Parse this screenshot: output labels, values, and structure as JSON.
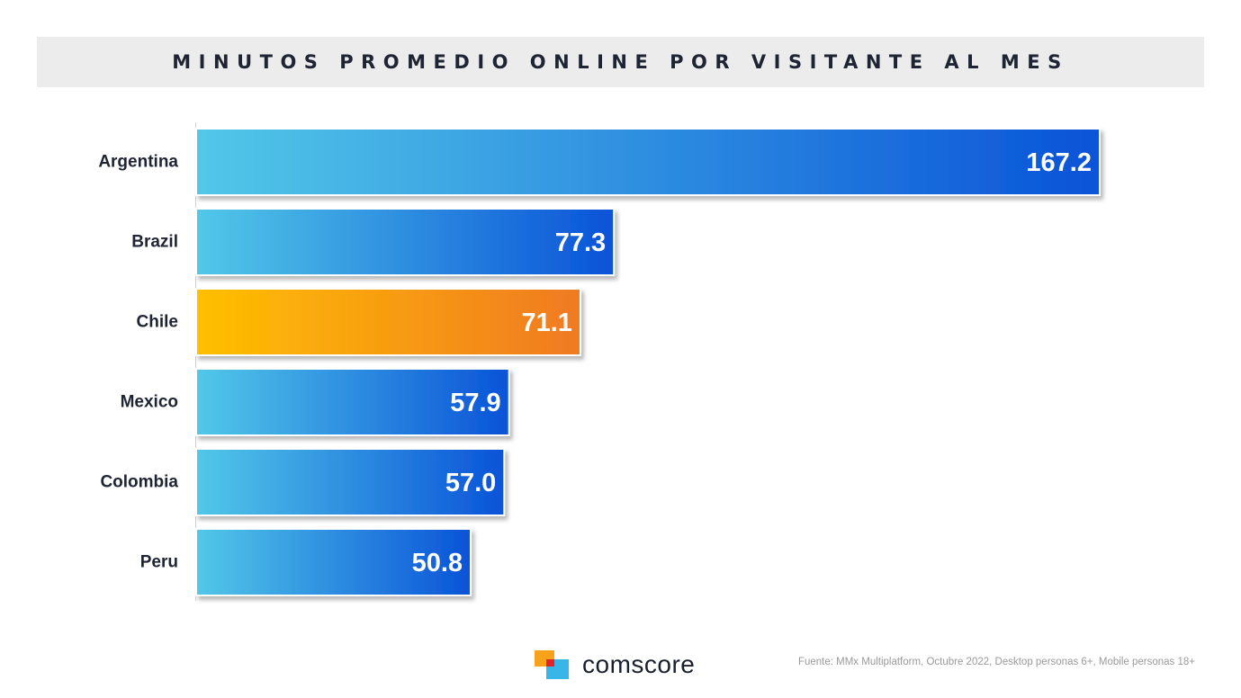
{
  "chart_data": {
    "type": "bar",
    "orientation": "horizontal",
    "title": "MINUTOS PROMEDIO ONLINE POR VISITANTE AL MES",
    "categories": [
      "Argentina",
      "Brazil",
      "Chile",
      "Mexico",
      "Colombia",
      "Peru"
    ],
    "values": [
      167.2,
      77.3,
      71.1,
      57.9,
      57.0,
      50.8
    ],
    "value_labels": [
      "167.2",
      "77.3",
      "71.1",
      "57.9",
      "57.0",
      "50.8"
    ],
    "highlight": "Chile",
    "xlim": [
      0,
      167.2
    ],
    "grid": false,
    "legend": "none",
    "colors": {
      "default_start": "#52c8e8",
      "default_end": "#0a53d8",
      "highlight_start": "#ffc000",
      "highlight_end": "#f07a22",
      "axis": "#d0d0d0"
    }
  },
  "logo": {
    "wordmark": "comscore",
    "colors": {
      "orange": "#f7a21b",
      "blue": "#39b6e8",
      "red": "#e2232a"
    }
  },
  "footer": {
    "source": "Fuente: MMx Multiplatform, Octubre 2022, Desktop personas 6+, Mobile personas 18+"
  }
}
